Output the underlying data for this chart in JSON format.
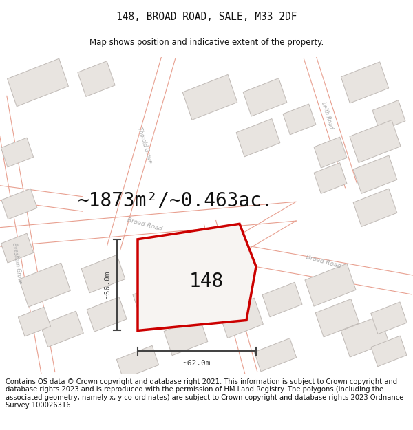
{
  "title_line1": "148, BROAD ROAD, SALE, M33 2DF",
  "title_line2": "Map shows position and indicative extent of the property.",
  "area_text": "~1873m²/~0.463ac.",
  "property_label": "148",
  "dim_width": "~62.0m",
  "dim_height": "~56.0m",
  "footer_text": "Contains OS data © Crown copyright and database right 2021. This information is subject to Crown copyright and database rights 2023 and is reproduced with the permission of HM Land Registry. The polygons (including the associated geometry, namely x, y co-ordinates) are subject to Crown copyright and database rights 2023 Ordnance Survey 100026316.",
  "map_bg": "#f7f4f2",
  "building_fill": "#e8e4e0",
  "building_stroke": "#c0bab6",
  "road_line_color": "#e8a090",
  "property_stroke": "#cc0000",
  "property_fill": "#f7f4f2",
  "dim_color": "#444444",
  "text_color": "#111111",
  "road_label_color": "#aaaaaa",
  "title_fontsize": 10.5,
  "subtitle_fontsize": 8.5,
  "area_fontsize": 20,
  "property_label_fontsize": 20,
  "footer_fontsize": 7.2,
  "road_lw": 0.8
}
